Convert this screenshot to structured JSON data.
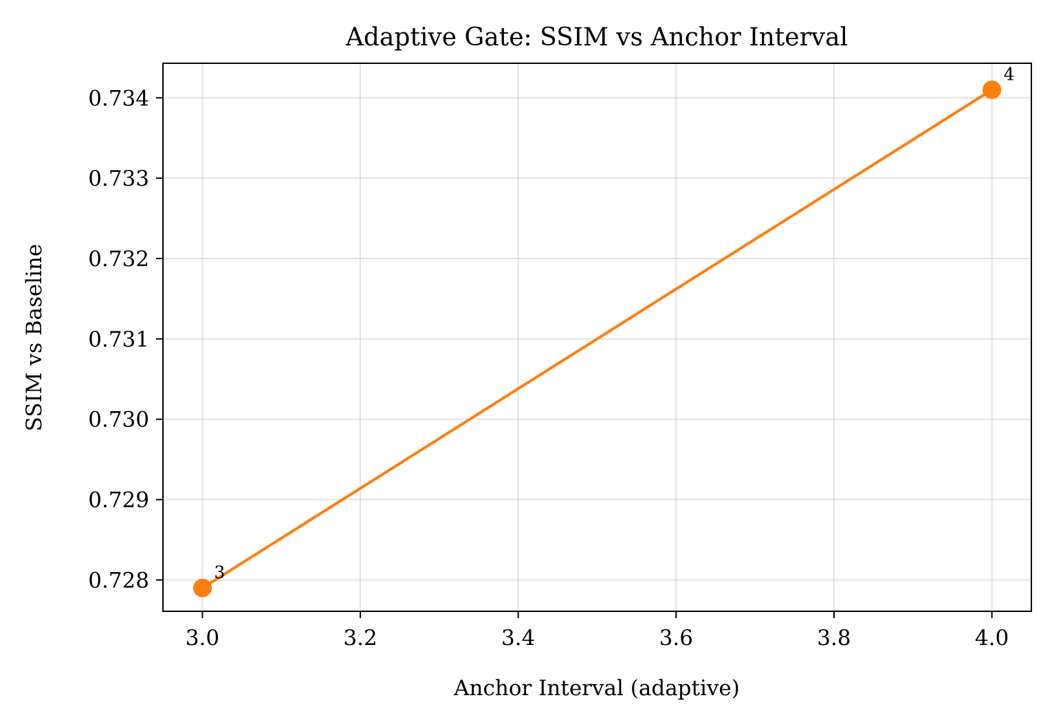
{
  "chart_data": {
    "type": "line",
    "title": "Adaptive Gate: SSIM vs Anchor Interval",
    "xlabel": "Anchor Interval (adaptive)",
    "ylabel": "SSIM vs Baseline",
    "xlim": [
      2.95,
      4.05
    ],
    "ylim": [
      0.72761,
      0.73443
    ],
    "xticks": [
      3.0,
      3.2,
      3.4,
      3.6,
      3.8,
      4.0
    ],
    "xtick_labels": [
      "3.0",
      "3.2",
      "3.4",
      "3.6",
      "3.8",
      "4.0"
    ],
    "yticks": [
      0.728,
      0.729,
      0.73,
      0.731,
      0.732,
      0.733,
      0.734
    ],
    "ytick_labels": [
      "0.728",
      "0.729",
      "0.730",
      "0.731",
      "0.732",
      "0.733",
      "0.734"
    ],
    "grid": true,
    "series": [
      {
        "color": "#ff7f0e",
        "x": [
          3,
          4
        ],
        "y": [
          0.7279,
          0.7341
        ],
        "point_labels": [
          "3",
          "4"
        ]
      }
    ]
  }
}
